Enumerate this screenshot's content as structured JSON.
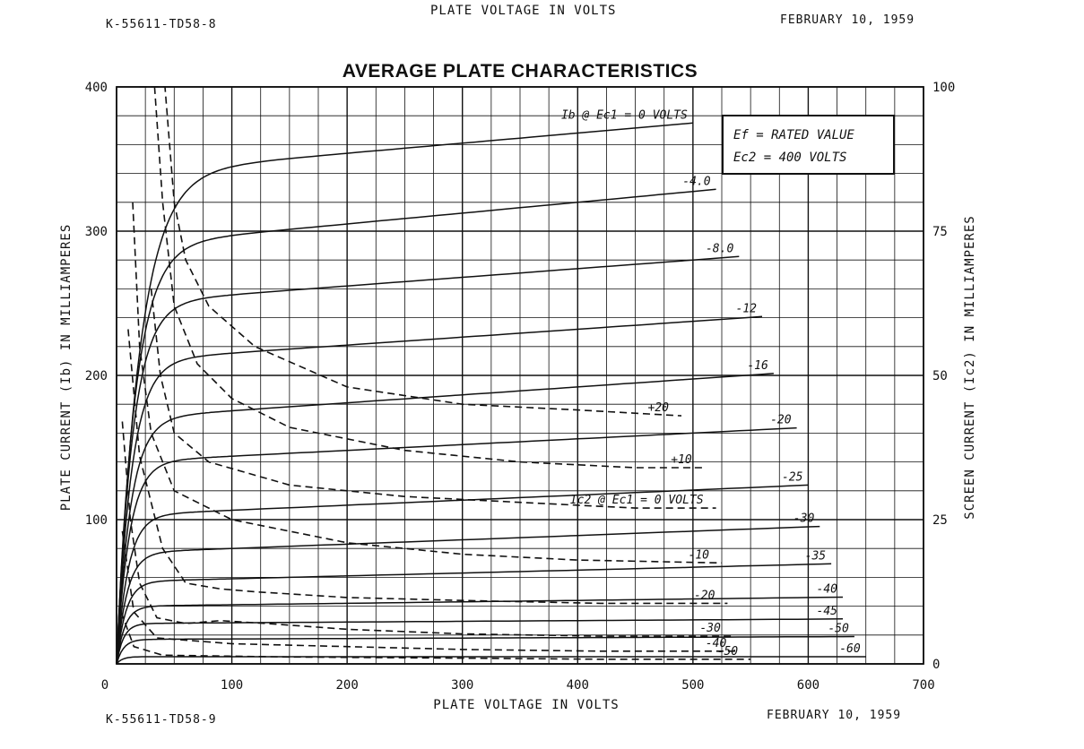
{
  "header": {
    "top_center": "PLATE VOLTAGE IN VOLTS",
    "top_left_code": "K-55611-TD58-8",
    "top_right_date": "FEBRUARY 10, 1959",
    "bottom_left_code": "K-55611-TD58-9",
    "bottom_right_date": "FEBRUARY 10, 1959"
  },
  "chart_data": {
    "type": "line",
    "title": "AVERAGE PLATE CHARACTERISTICS",
    "xlabel": "PLATE VOLTAGE IN VOLTS",
    "ylabel": "PLATE CURRENT (Ib) IN MILLIAMPERES",
    "y2label": "SCREEN CURRENT (Ic2) IN MILLIAMPERES",
    "xlim": [
      0,
      700
    ],
    "ylim": [
      0,
      400
    ],
    "y2lim": [
      0,
      100
    ],
    "x_ticks": [
      "0",
      "100",
      "200",
      "300",
      "400",
      "500",
      "600",
      "700"
    ],
    "y_ticks": [
      "400",
      "300",
      "200",
      "100"
    ],
    "y2_ticks": [
      "100",
      "75",
      "50",
      "25",
      "0"
    ],
    "grid": true,
    "conditions": [
      "Ef = RATED VALUE",
      "Ec2 = 400 VOLTS"
    ],
    "plate_current_series": [
      {
        "name": "Ib @ Ec1 = 0 VOLTS",
        "ec1": 0,
        "plateau": 340,
        "slope": 0.07,
        "knee": 20,
        "x_end": 500
      },
      {
        "name": "-4.0",
        "ec1": -4.0,
        "plateau": 290,
        "slope": 0.075,
        "knee": 16,
        "x_end": 525
      },
      {
        "name": "-8.0",
        "ec1": -8.0,
        "plateau": 250,
        "slope": 0.06,
        "knee": 14,
        "x_end": 540
      },
      {
        "name": "-12",
        "ec1": -12,
        "plateau": 210,
        "slope": 0.055,
        "knee": 13,
        "x_end": 560
      },
      {
        "name": "-16",
        "ec1": -16,
        "plateau": 170,
        "slope": 0.055,
        "knee": 12,
        "x_end": 575
      },
      {
        "name": "-20",
        "ec1": -20,
        "plateau": 140,
        "slope": 0.04,
        "knee": 11,
        "x_end": 590
      },
      {
        "name": "-25",
        "ec1": -25,
        "plateau": 103,
        "slope": 0.035,
        "knee": 10,
        "x_end": 600
      },
      {
        "name": "-30",
        "ec1": -30,
        "plateau": 77,
        "slope": 0.03,
        "knee": 9,
        "x_end": 610
      },
      {
        "name": "-35",
        "ec1": -35,
        "plateau": 57,
        "slope": 0.02,
        "knee": 8,
        "x_end": 625
      },
      {
        "name": "-40",
        "ec1": -40,
        "plateau": 40,
        "slope": 0.01,
        "knee": 7,
        "x_end": 630
      },
      {
        "name": "-45",
        "ec1": -45,
        "plateau": 28,
        "slope": 0.005,
        "knee": 6,
        "x_end": 635
      },
      {
        "name": "-50",
        "ec1": -50,
        "plateau": 17,
        "slope": 0.003,
        "knee": 6,
        "x_end": 640
      },
      {
        "name": "-60",
        "ec1": -60,
        "plateau": 5,
        "slope": 0.0,
        "knee": 5,
        "x_end": 650
      }
    ],
    "screen_current_series": [
      {
        "name": "+20",
        "ec1": 20,
        "points": [
          [
            20,
            100
          ],
          [
            42,
            100
          ],
          [
            50,
            80
          ],
          [
            60,
            70
          ],
          [
            80,
            62
          ],
          [
            120,
            55
          ],
          [
            200,
            48
          ],
          [
            300,
            45
          ],
          [
            400,
            44
          ],
          [
            490,
            43
          ]
        ]
      },
      {
        "name": "+10",
        "ec1": 10,
        "points": [
          [
            33,
            100
          ],
          [
            40,
            80
          ],
          [
            50,
            62
          ],
          [
            70,
            52
          ],
          [
            100,
            46
          ],
          [
            150,
            41
          ],
          [
            250,
            37
          ],
          [
            350,
            35
          ],
          [
            450,
            34
          ],
          [
            510,
            34
          ]
        ]
      },
      {
        "name": "Ic2 @ Ec1 = 0 VOLTS",
        "ec1": 0,
        "points": [
          [
            30,
            65
          ],
          [
            38,
            50
          ],
          [
            50,
            40
          ],
          [
            80,
            35
          ],
          [
            150,
            31
          ],
          [
            250,
            29
          ],
          [
            350,
            28
          ],
          [
            450,
            27
          ],
          [
            520,
            27
          ]
        ]
      },
      {
        "name": "-10",
        "ec1": -10,
        "points": [
          [
            14,
            80
          ],
          [
            20,
            55
          ],
          [
            30,
            40
          ],
          [
            50,
            30
          ],
          [
            100,
            25
          ],
          [
            200,
            21
          ],
          [
            300,
            19
          ],
          [
            400,
            18
          ],
          [
            525,
            17.5
          ]
        ]
      },
      {
        "name": "-20",
        "ec1": -20,
        "points": [
          [
            10,
            58
          ],
          [
            20,
            36
          ],
          [
            40,
            20
          ],
          [
            60,
            14
          ],
          [
            90,
            13
          ],
          [
            120,
            12.5
          ],
          [
            200,
            11.5
          ],
          [
            300,
            11
          ],
          [
            420,
            10.5
          ],
          [
            530,
            10.5
          ]
        ]
      },
      {
        "name": "-30",
        "ec1": -30,
        "points": [
          [
            5,
            42
          ],
          [
            12,
            25
          ],
          [
            20,
            14
          ],
          [
            35,
            8
          ],
          [
            60,
            7
          ],
          [
            90,
            7.5
          ],
          [
            130,
            7
          ],
          [
            200,
            6
          ],
          [
            300,
            5.2
          ],
          [
            420,
            4.8
          ],
          [
            535,
            4.8
          ]
        ]
      },
      {
        "name": "-40",
        "ec1": -40,
        "points": [
          [
            5,
            23
          ],
          [
            15,
            9
          ],
          [
            35,
            4.5
          ],
          [
            100,
            3.5
          ],
          [
            200,
            3
          ],
          [
            300,
            2.5
          ],
          [
            420,
            2.2
          ],
          [
            540,
            2.2
          ]
        ]
      },
      {
        "name": "-50",
        "ec1": -50,
        "points": [
          [
            4,
            9
          ],
          [
            15,
            3
          ],
          [
            40,
            1.5
          ],
          [
            150,
            1.2
          ],
          [
            300,
            1.0
          ],
          [
            420,
            0.8
          ],
          [
            550,
            0.8
          ]
        ]
      }
    ]
  }
}
